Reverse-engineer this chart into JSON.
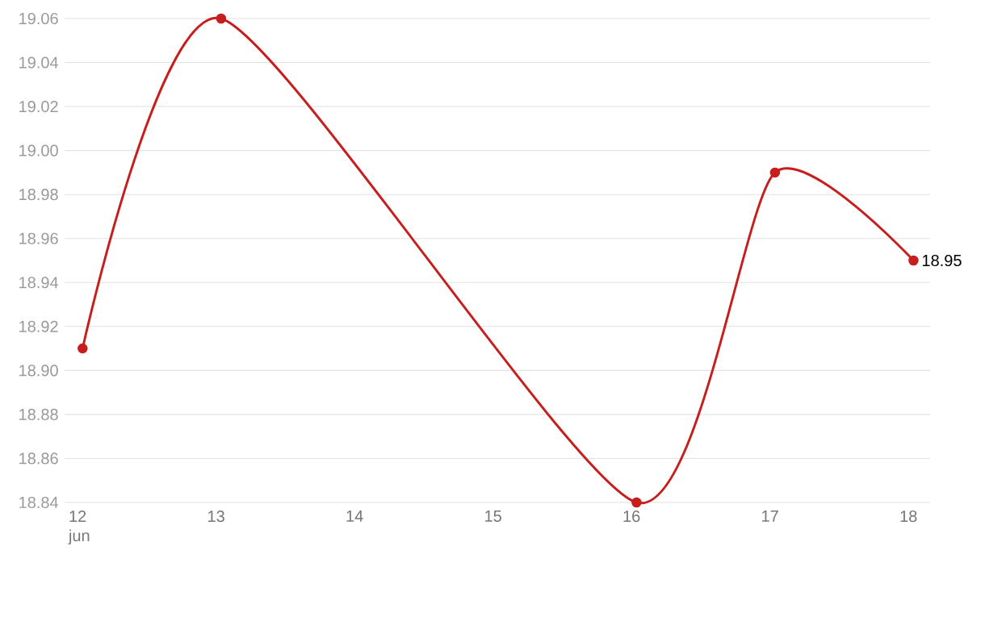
{
  "chart_data": {
    "type": "line",
    "x": [
      12,
      13,
      16,
      17,
      18
    ],
    "values": [
      18.91,
      19.06,
      18.84,
      18.99,
      18.95
    ],
    "color": "#c71e1d",
    "marker": "circle",
    "value_labels": [
      null,
      null,
      null,
      null,
      "18.95"
    ],
    "grid": "y",
    "xlim": [
      11.87,
      18.12
    ],
    "xticks": [
      {
        "value": 12,
        "label": "12 jun"
      },
      13,
      14,
      15,
      16,
      17,
      18
    ],
    "ylim": [
      18.84,
      19.06
    ],
    "yticks": [
      {
        "value": 18.84,
        "label": "18.84"
      },
      {
        "value": 18.86,
        "label": "18.86"
      },
      {
        "value": 18.88,
        "label": "18.88"
      },
      {
        "value": 18.9,
        "label": "18.90"
      },
      {
        "value": 18.92,
        "label": "18.92"
      },
      {
        "value": 18.94,
        "label": "18.94"
      },
      {
        "value": 18.96,
        "label": "18.96"
      },
      {
        "value": 18.98,
        "label": "18.98"
      },
      {
        "value": 19.0,
        "label": "19.00"
      },
      {
        "value": 19.02,
        "label": "19.02"
      },
      {
        "value": 19.04,
        "label": "19.04"
      },
      {
        "value": 19.06,
        "label": "19.06"
      }
    ]
  }
}
